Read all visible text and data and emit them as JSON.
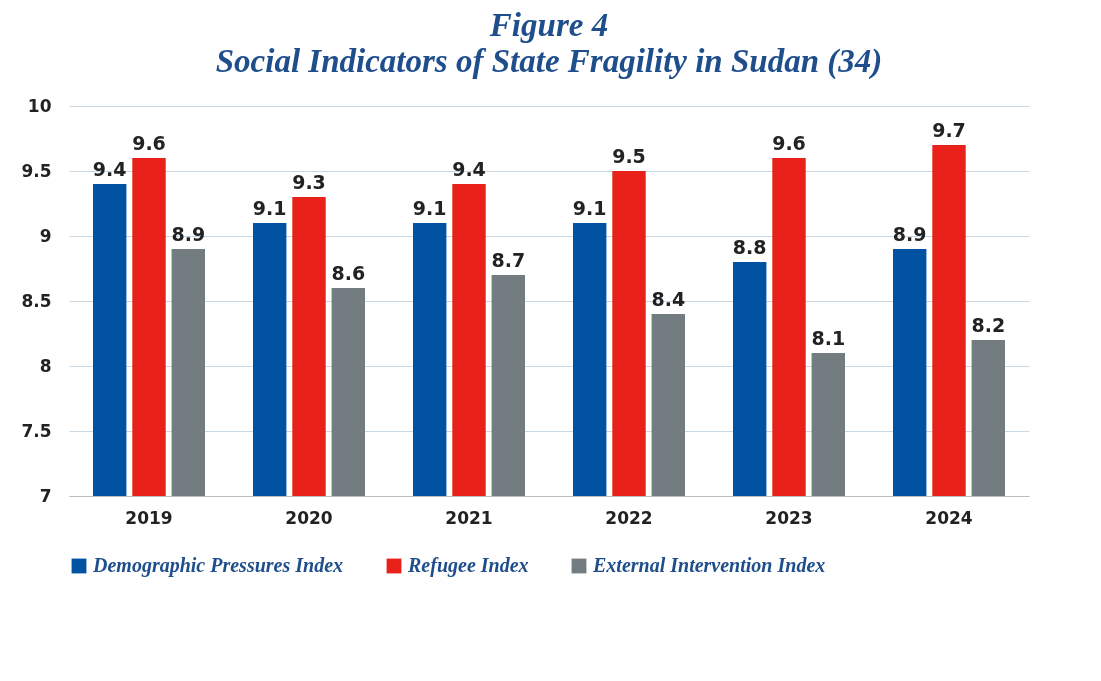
{
  "chart_data": {
    "type": "bar",
    "title": "Figure 4",
    "subtitle": "Social Indicators of State Fragility in Sudan (34)",
    "categories": [
      "2019",
      "2020",
      "2021",
      "2022",
      "2023",
      "2024"
    ],
    "series": [
      {
        "name": "Demographic Pressures Index",
        "color": "#0252a4",
        "values": [
          9.4,
          9.1,
          9.1,
          9.1,
          8.8,
          8.9
        ]
      },
      {
        "name": "Refugee Index",
        "color": "#e8211b",
        "values": [
          9.6,
          9.3,
          9.4,
          9.5,
          9.6,
          9.7
        ]
      },
      {
        "name": "External Intervention Index",
        "color": "#737c81",
        "values": [
          8.9,
          8.6,
          8.7,
          8.4,
          8.1,
          8.2
        ]
      }
    ],
    "ylim": [
      7,
      10
    ],
    "yticks": [
      7,
      7.5,
      8,
      8.5,
      9,
      9.5,
      10
    ],
    "grid": "y",
    "legend": "bottom",
    "data_labels": true
  }
}
